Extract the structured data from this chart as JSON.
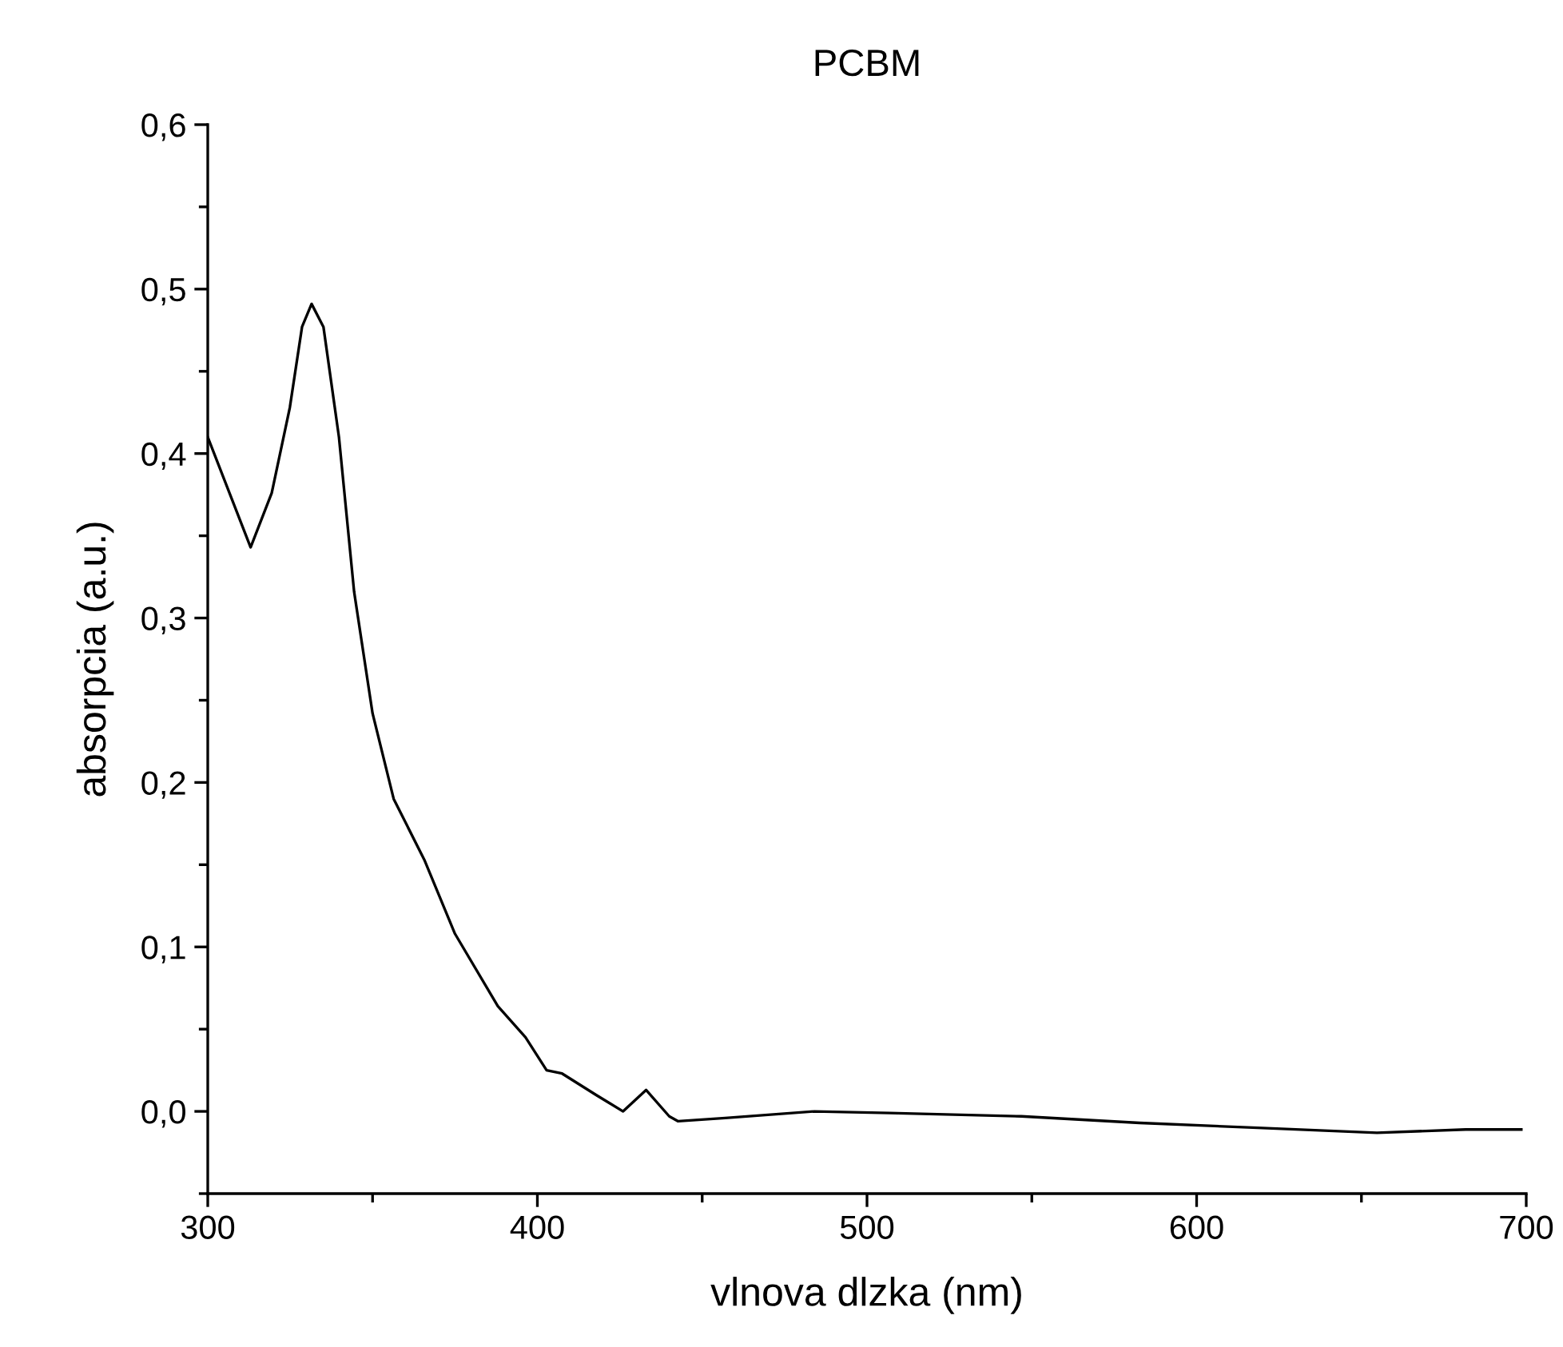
{
  "chart_data": {
    "type": "line",
    "title": "PCBM",
    "xlabel": "vlnova dlzka (nm)",
    "ylabel": "absorpcia (a.u.)",
    "xlim": [
      300,
      700
    ],
    "ylim": [
      -0.05,
      0.6
    ],
    "xticks": [
      300,
      {
        "value": 350,
        "label": null
      },
      400,
      {
        "value": 450,
        "label": null
      },
      500,
      {
        "value": 550,
        "label": null
      },
      600,
      {
        "value": 650,
        "label": null
      },
      700
    ],
    "yticks": [
      {
        "value": -0.05,
        "label": null
      },
      {
        "value": 0.0,
        "label": "0,0"
      },
      {
        "value": 0.05,
        "label": null
      },
      {
        "value": 0.1,
        "label": "0,1"
      },
      {
        "value": 0.15,
        "label": null
      },
      {
        "value": 0.2,
        "label": "0,2"
      },
      {
        "value": 0.25,
        "label": null
      },
      {
        "value": 0.3,
        "label": "0,3"
      },
      {
        "value": 0.35,
        "label": null
      },
      {
        "value": 0.4,
        "label": "0,4"
      },
      {
        "value": 0.45,
        "label": null
      },
      {
        "value": 0.5,
        "label": "0,5"
      },
      {
        "value": 0.55,
        "label": null
      },
      {
        "value": 0.6,
        "label": "0,6"
      }
    ],
    "grid": false,
    "marker": "none",
    "line_style": "solid",
    "series": [
      {
        "color": "#000000",
        "x": [
          300,
          313,
          319.4,
          324.9,
          328.6,
          331.5,
          335.1,
          339.8,
          344.4,
          350,
          356.4,
          365.7,
          375,
          388,
          396.4,
          402.8,
          407.5,
          417.8,
          426,
          433,
          440,
          442.7,
          457,
          484,
          507,
          546.8,
          582.7,
          618.5,
          654.7,
          681.6,
          698.5
        ],
        "values": [
          0.41,
          0.343,
          0.376,
          0.428,
          0.477,
          0.491,
          0.477,
          0.41,
          0.316,
          0.242,
          0.19,
          0.153,
          0.108,
          0.064,
          0.045,
          0.025,
          0.023,
          0.01,
          0.0,
          0.013,
          -0.003,
          -0.006,
          -0.004,
          0.0,
          -0.001,
          -0.003,
          -0.007,
          -0.01,
          -0.013,
          -0.011,
          -0.011
        ]
      }
    ]
  }
}
